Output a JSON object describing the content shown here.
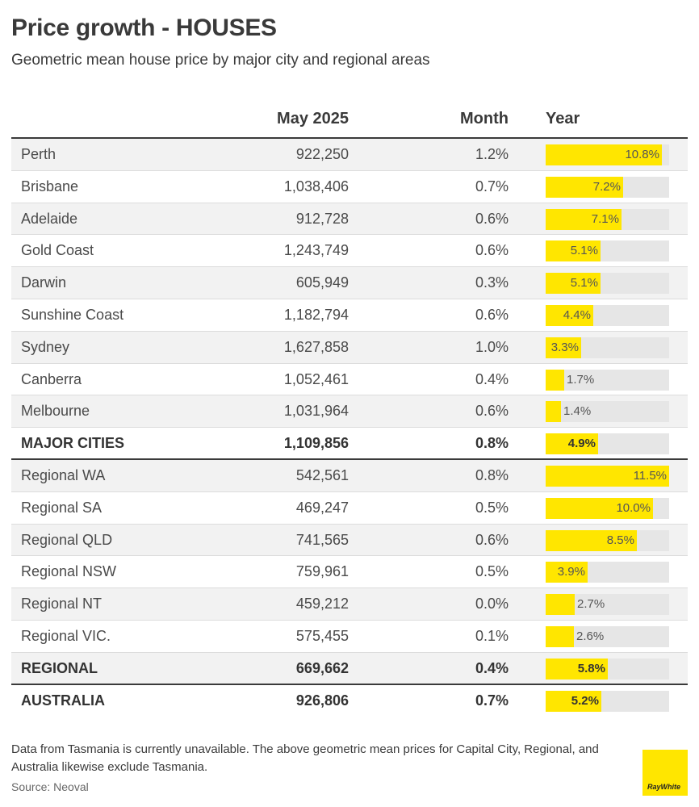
{
  "title": "Price growth - HOUSES",
  "subtitle": "Geometric mean house price by major city and regional areas",
  "columns": {
    "name": "",
    "price": "May 2025",
    "month": "Month",
    "year": "Year"
  },
  "chart_data": {
    "type": "table",
    "bar_max": 11.5,
    "rows": [
      {
        "name": "Perth",
        "price": "922,250",
        "month": "1.2%",
        "year": 10.8,
        "year_label": "10.8%",
        "kind": "city"
      },
      {
        "name": "Brisbane",
        "price": "1,038,406",
        "month": "0.7%",
        "year": 7.2,
        "year_label": "7.2%",
        "kind": "city"
      },
      {
        "name": "Adelaide",
        "price": "912,728",
        "month": "0.6%",
        "year": 7.1,
        "year_label": "7.1%",
        "kind": "city"
      },
      {
        "name": "Gold Coast",
        "price": "1,243,749",
        "month": "0.6%",
        "year": 5.1,
        "year_label": "5.1%",
        "kind": "city"
      },
      {
        "name": "Darwin",
        "price": "605,949",
        "month": "0.3%",
        "year": 5.1,
        "year_label": "5.1%",
        "kind": "city"
      },
      {
        "name": "Sunshine Coast",
        "price": "1,182,794",
        "month": "0.6%",
        "year": 4.4,
        "year_label": "4.4%",
        "kind": "city"
      },
      {
        "name": "Sydney",
        "price": "1,627,858",
        "month": "1.0%",
        "year": 3.3,
        "year_label": "3.3%",
        "kind": "city"
      },
      {
        "name": "Canberra",
        "price": "1,052,461",
        "month": "0.4%",
        "year": 1.7,
        "year_label": "1.7%",
        "kind": "city"
      },
      {
        "name": "Melbourne",
        "price": "1,031,964",
        "month": "0.6%",
        "year": 1.4,
        "year_label": "1.4%",
        "kind": "city"
      },
      {
        "name": "MAJOR CITIES",
        "price": "1,109,856",
        "month": "0.8%",
        "year": 4.9,
        "year_label": "4.9%",
        "kind": "total"
      },
      {
        "name": "Regional WA",
        "price": "542,561",
        "month": "0.8%",
        "year": 11.5,
        "year_label": "11.5%",
        "kind": "regional"
      },
      {
        "name": "Regional SA",
        "price": "469,247",
        "month": "0.5%",
        "year": 10.0,
        "year_label": "10.0%",
        "kind": "regional"
      },
      {
        "name": "Regional QLD",
        "price": "741,565",
        "month": "0.6%",
        "year": 8.5,
        "year_label": "8.5%",
        "kind": "regional"
      },
      {
        "name": "Regional NSW",
        "price": "759,961",
        "month": "0.5%",
        "year": 3.9,
        "year_label": "3.9%",
        "kind": "regional"
      },
      {
        "name": "Regional NT",
        "price": "459,212",
        "month": "0.0%",
        "year": 2.7,
        "year_label": "2.7%",
        "kind": "regional"
      },
      {
        "name": "Regional VIC.",
        "price": "575,455",
        "month": "0.1%",
        "year": 2.6,
        "year_label": "2.6%",
        "kind": "regional"
      },
      {
        "name": "REGIONAL",
        "price": "669,662",
        "month": "0.4%",
        "year": 5.8,
        "year_label": "5.8%",
        "kind": "total"
      },
      {
        "name": "AUSTRALIA",
        "price": "926,806",
        "month": "0.7%",
        "year": 5.2,
        "year_label": "5.2%",
        "kind": "total"
      }
    ]
  },
  "footnote": "Data from Tasmania is currently unavailable. The above geometric mean prices for Capital City, Regional, and Australia likewise exclude Tasmania.",
  "source": "Source: Neoval",
  "logo": {
    "text": "RayWhite",
    "color": "#ffe600"
  },
  "colors": {
    "bar": "#ffe600",
    "track": "#e6e6e6",
    "alt_row": "#f2f2f2"
  }
}
